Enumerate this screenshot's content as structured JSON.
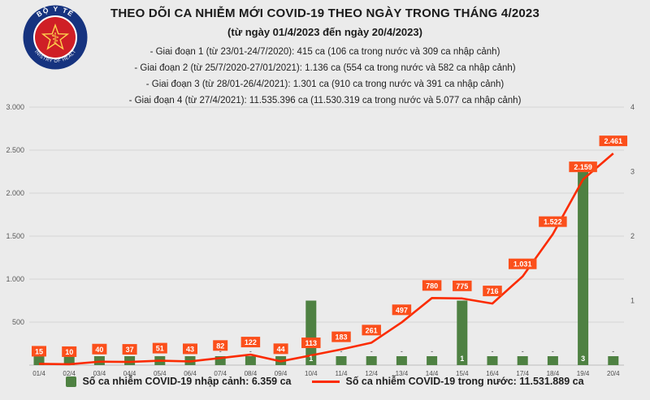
{
  "logo": {
    "top_text": "BỘ Y TẾ",
    "bottom_text": "MINISTRY OF HEALTH"
  },
  "colors": {
    "background": "#ebebeb",
    "bar": "#4e8142",
    "line": "#fb2b00",
    "line_label_bg": "#fb4f1b",
    "gridline": "#d4d4d4"
  },
  "chart_data": {
    "type": "combo",
    "title": "THEO DÕI CA NHIỄM MỚI COVID-19 THEO NGÀY TRONG THÁNG 4/2023",
    "subtitle": "(từ ngày 01/4/2023 đến ngày 20/4/2023)",
    "annotations": [
      "- Giai đoạn 1 (từ 23/01-24/7/2020): 415 ca (106 ca trong nước và 309 ca nhập cảnh)",
      "- Giai đoạn 2 (từ 25/7/2020-27/01/2021): 1.136 ca (554 ca trong nước và 582 ca nhập cảnh)",
      "- Giai đoạn 3 (từ 28/01-26/4/2021): 1.301 ca (910 ca trong nước và 391 ca nhập cảnh)",
      "- Giai đoạn 4 (từ 27/4/2021): 11.535.396 ca (11.530.319 ca trong nước và 5.077 ca nhập cảnh)"
    ],
    "categories": [
      "01/4",
      "02/4",
      "03/4",
      "04/4",
      "05/4",
      "06/4",
      "07/4",
      "08/4",
      "09/4",
      "10/4",
      "11/4",
      "12/4",
      "13/4",
      "14/4",
      "15/4",
      "16/4",
      "17/4",
      "18/4",
      "19/4",
      "20/4"
    ],
    "series": [
      {
        "name": "Số ca nhiễm COVID-19 nhập cảnh",
        "type": "bar",
        "axis": "right",
        "color": "#4e8142",
        "values": [
          null,
          null,
          null,
          null,
          null,
          null,
          null,
          null,
          null,
          1,
          null,
          null,
          null,
          null,
          1,
          null,
          null,
          null,
          3,
          null
        ],
        "labels": [
          "-",
          "-",
          "-",
          "-",
          "-",
          "-",
          "-",
          "-",
          "-",
          "1",
          "-",
          "-",
          "-",
          "-",
          "1",
          "-",
          "-",
          "-",
          "3",
          "-"
        ]
      },
      {
        "name": "Số ca nhiễm COVID-19 trong nước",
        "type": "line",
        "axis": "left",
        "color": "#fb2b00",
        "label_bg": "#fb4f1b",
        "values": [
          15,
          10,
          40,
          37,
          51,
          43,
          82,
          122,
          44,
          113,
          183,
          261,
          497,
          780,
          775,
          716,
          1031,
          1522,
          2159,
          2461
        ],
        "labels": [
          "15",
          "10",
          "40",
          "37",
          "51",
          "43",
          "82",
          "122",
          "44",
          "113",
          "183",
          "261",
          "497",
          "780",
          "775",
          "716",
          "1.031",
          "1.522",
          "2.159",
          "2.461"
        ]
      }
    ],
    "left_axis": {
      "min": 0,
      "max": 3000,
      "step": 500,
      "tick_labels": [
        "500",
        "1.000",
        "1.500",
        "2.000",
        "2.500",
        "3.000"
      ]
    },
    "right_axis": {
      "min": 0,
      "max": 4,
      "step": 1,
      "tick_labels": [
        "1",
        "2",
        "3",
        "4"
      ]
    },
    "grid": true,
    "legend_position": "bottom",
    "legend": {
      "bar_label": "Số ca nhiễm COVID-19 nhập cảnh: 6.359 ca",
      "line_label": "Số ca nhiễm COVID-19 trong nước: 11.531.889 ca"
    }
  }
}
